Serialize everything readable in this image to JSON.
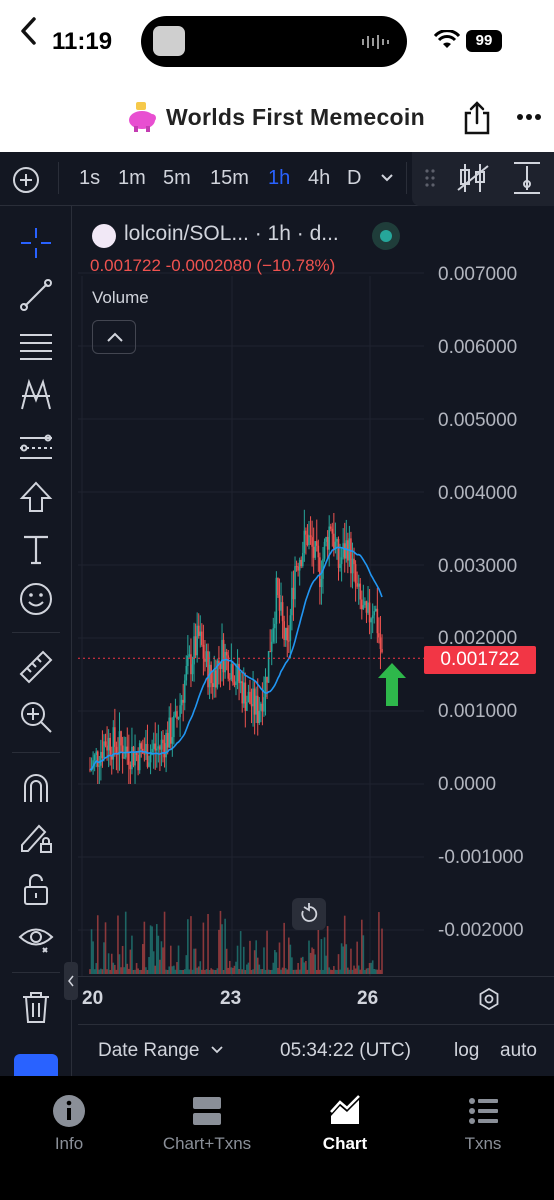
{
  "status_bar": {
    "time": "11:19",
    "battery": "99"
  },
  "header": {
    "title": "Worlds First Memecoin"
  },
  "toolbar": {
    "intervals": [
      "1s",
      "1m",
      "5m",
      "15m",
      "1h",
      "4h",
      "D"
    ],
    "active_interval": "1h"
  },
  "legend": {
    "symbol": "lolcoin/SOL... · 1h · d...",
    "price": "0.001722",
    "change": "-0.0002080",
    "change_pct": "(−10.78%)",
    "volume_label": "Volume"
  },
  "price_axis": {
    "ticks": [
      "0.007000",
      "0.006000",
      "0.005000",
      "0.004000",
      "0.003000",
      "0.002000",
      "0.001000",
      "0.0000",
      "-0.001000",
      "-0.002000"
    ],
    "current_price": "0.001722"
  },
  "time_axis": {
    "ticks": [
      "20",
      "23",
      "26"
    ]
  },
  "bottom_bar": {
    "date_range": "Date Range",
    "utc": "05:34:22 (UTC)",
    "log": "log",
    "auto": "auto"
  },
  "tabs": [
    {
      "label": "Info",
      "icon": "info-icon"
    },
    {
      "label": "Chart+Txns",
      "icon": "split-view-icon"
    },
    {
      "label": "Chart",
      "icon": "area-chart-icon"
    },
    {
      "label": "Txns",
      "icon": "list-icon"
    }
  ],
  "active_tab": "Chart",
  "colors": {
    "up": "#26a69a",
    "down": "#ef5350",
    "ma": "#2196f3",
    "accent": "#2962ff",
    "price_tag": "#f23645"
  }
}
